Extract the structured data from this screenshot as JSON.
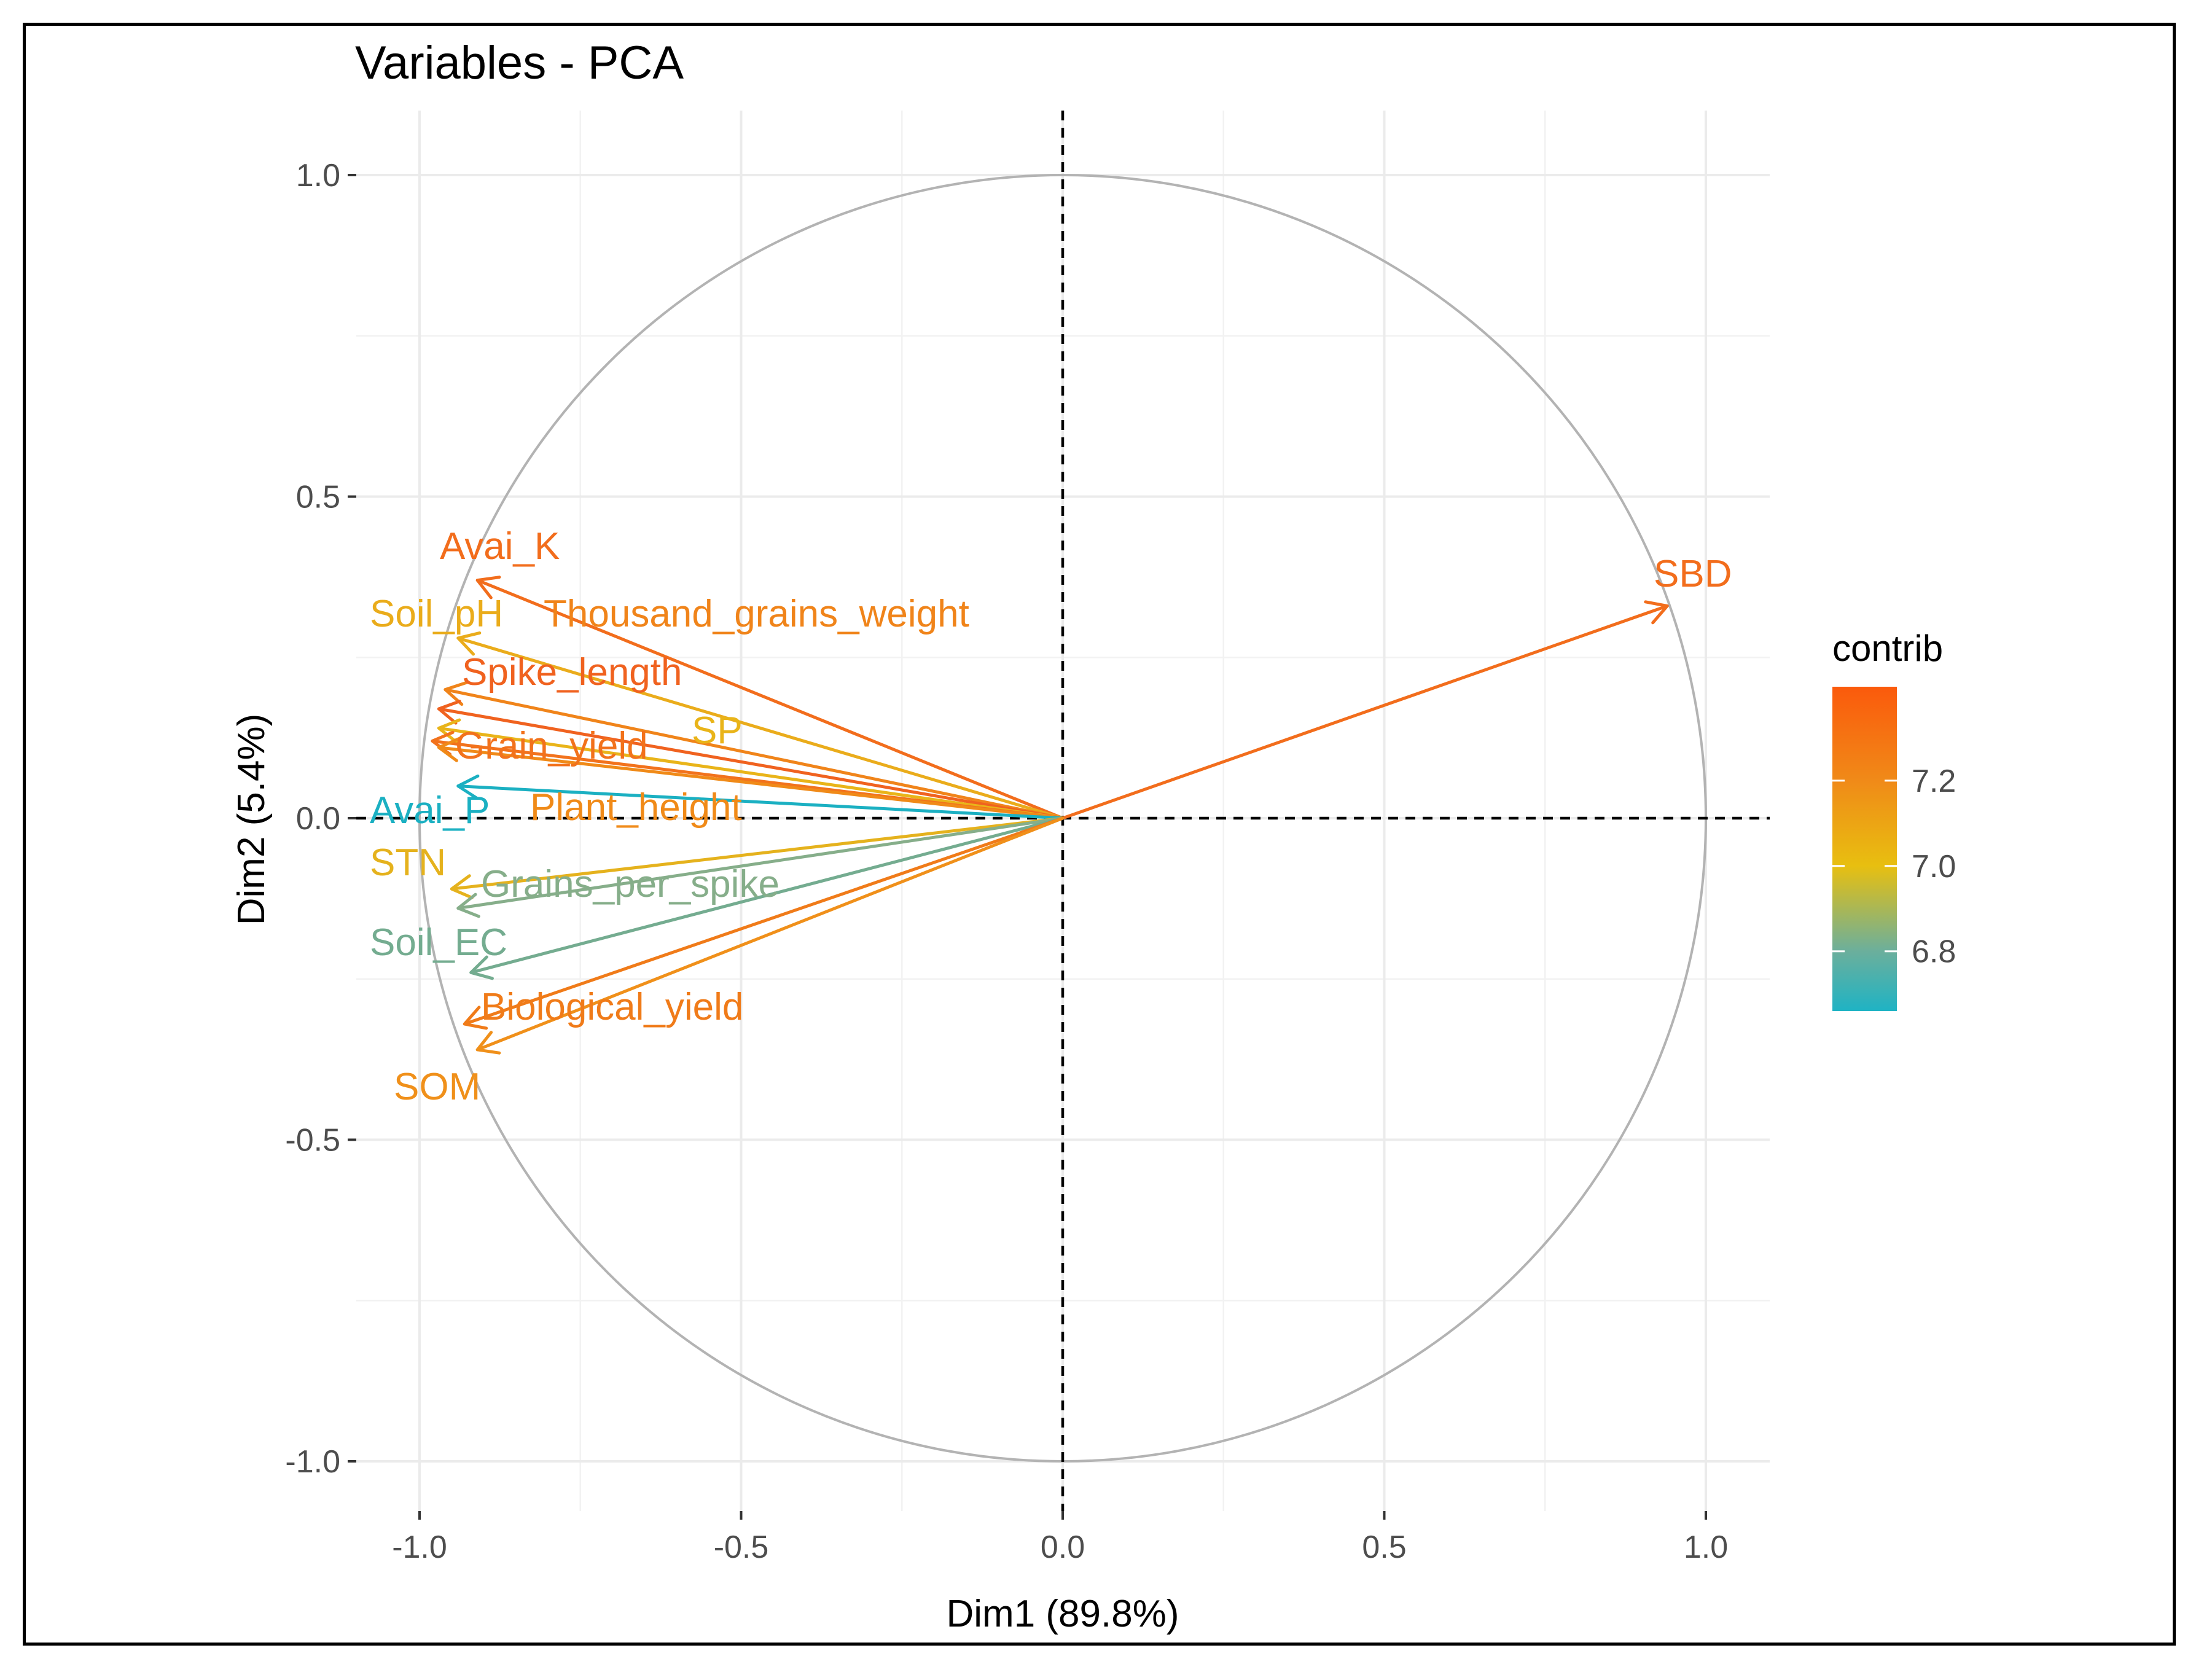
{
  "chart_data": {
    "type": "scatter",
    "subtype": "pca-variable-correlation-circle",
    "title": "Variables - PCA",
    "xlabel": "Dim1 (89.8%)",
    "ylabel": "Dim2 (5.4%)",
    "xlim": [
      -1.1,
      1.1
    ],
    "ylim": [
      -1.1,
      1.1
    ],
    "xticks": [
      -1.0,
      -0.5,
      0.0,
      0.5,
      1.0
    ],
    "xtick_labels": [
      "-1.0",
      "-0.5",
      "0.0",
      "0.5",
      "1.0"
    ],
    "yticks": [
      -1.0,
      -0.5,
      0.0,
      0.5,
      1.0
    ],
    "ytick_labels": [
      "-1.0",
      "-0.5",
      "0.0",
      "0.5",
      "1.0"
    ],
    "grid": true,
    "unit_circle": true,
    "reference_lines": "dashed at x=0 and y=0",
    "legend": {
      "title": "contrib",
      "type": "continuous-colorbar",
      "placement": "right",
      "range": [
        6.66,
        7.42
      ],
      "tick_values": [
        6.8,
        7.0,
        7.2
      ],
      "tick_labels": [
        "6.8",
        "7.0",
        "7.2"
      ],
      "gradient": [
        {
          "value": 6.66,
          "color": "#1FB3C4"
        },
        {
          "value": 6.8,
          "color": "#6BAF9C"
        },
        {
          "value": 7.0,
          "color": "#E8BF10"
        },
        {
          "value": 7.2,
          "color": "#F08A18"
        },
        {
          "value": 7.42,
          "color": "#FB5A0C"
        }
      ]
    },
    "variables": [
      {
        "name": "SBD",
        "x": 0.94,
        "y": 0.33,
        "contrib": 7.33,
        "color": "#F26D1C"
      },
      {
        "name": "Avai_K",
        "x": -0.91,
        "y": 0.37,
        "contrib": 7.34,
        "color": "#F26D1C"
      },
      {
        "name": "Soil_pH",
        "x": -0.94,
        "y": 0.28,
        "contrib": 7.05,
        "color": "#EAAC1B"
      },
      {
        "name": "Thousand_grains_weight",
        "x": -0.96,
        "y": 0.2,
        "contrib": 7.22,
        "color": "#F0841A"
      },
      {
        "name": "Spike_length",
        "x": -0.97,
        "y": 0.17,
        "contrib": 7.34,
        "color": "#F0621F"
      },
      {
        "name": "SP",
        "x": -0.97,
        "y": 0.14,
        "contrib": 7.06,
        "color": "#E9B419"
      },
      {
        "name": "Grain_yield",
        "x": -0.98,
        "y": 0.12,
        "contrib": 7.3,
        "color": "#F2721C"
      },
      {
        "name": "Plant_height",
        "x": -0.97,
        "y": 0.11,
        "contrib": 7.2,
        "color": "#F08A18"
      },
      {
        "name": "Avai_P",
        "x": -0.94,
        "y": 0.05,
        "contrib": 6.67,
        "color": "#1BB0C2"
      },
      {
        "name": "STN",
        "x": -0.95,
        "y": -0.11,
        "contrib": 7.04,
        "color": "#E5B21D"
      },
      {
        "name": "Grains_per_spike",
        "x": -0.94,
        "y": -0.14,
        "contrib": 6.83,
        "color": "#86AE8A"
      },
      {
        "name": "Soil_EC",
        "x": -0.92,
        "y": -0.24,
        "contrib": 6.8,
        "color": "#74AC90"
      },
      {
        "name": "Biological_yield",
        "x": -0.93,
        "y": -0.32,
        "contrib": 7.26,
        "color": "#F07B19"
      },
      {
        "name": "SOM",
        "x": -0.91,
        "y": -0.36,
        "contrib": 7.18,
        "color": "#F0901A"
      }
    ]
  }
}
